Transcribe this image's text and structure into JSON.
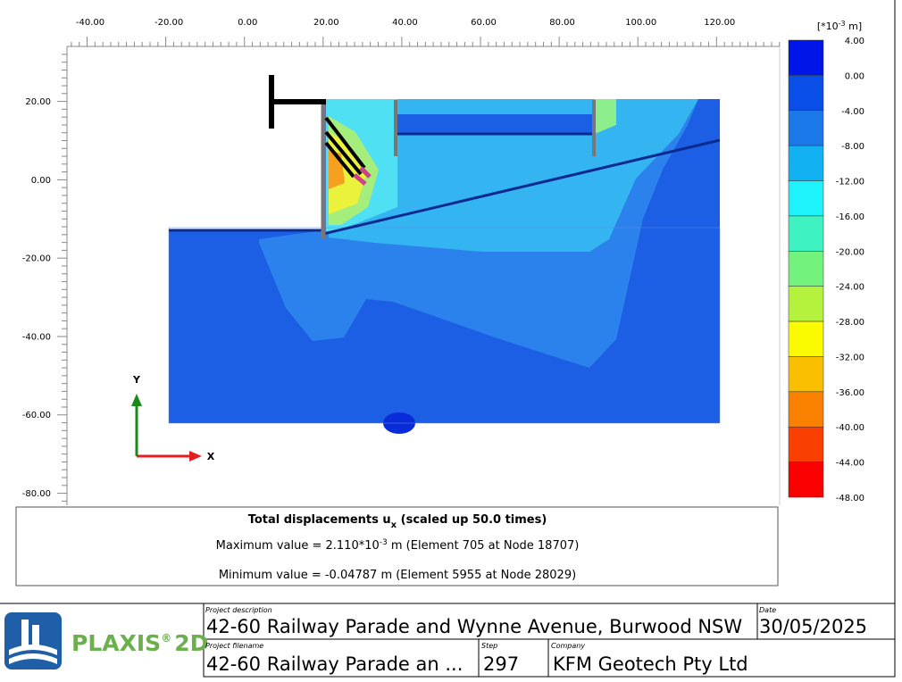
{
  "axes": {
    "x_tick_labels": [
      "-40.00",
      "-20.00",
      "0.00",
      "20.00",
      "40.00",
      "60.00",
      "80.00",
      "100.00",
      "120.00"
    ],
    "y_tick_labels": [
      "20.00",
      "0.00",
      "-20.00",
      "-40.00",
      "-60.00",
      "-80.00"
    ],
    "x_label": "X",
    "y_label": "Y"
  },
  "legend": {
    "unit": {
      "prefix": "[*10",
      "exponent": "-3",
      "suffix": " m]"
    },
    "labels": [
      "4.00",
      "0.00",
      "-4.00",
      "-8.00",
      "-12.00",
      "-16.00",
      "-20.00",
      "-24.00",
      "-28.00",
      "-32.00",
      "-36.00",
      "-40.00",
      "-44.00",
      "-48.00"
    ],
    "colors": [
      "#0016e8",
      "#0a4ee8",
      "#1a78e8",
      "#12b2f2",
      "#1ef2fa",
      "#3ef2c2",
      "#74f27e",
      "#b4f23e",
      "#fafa00",
      "#fac000",
      "#fa8000",
      "#fa4000",
      "#fa0000"
    ]
  },
  "info": {
    "title": {
      "main": "Total displacements u",
      "sub": "x",
      "rest": " (scaled up 50.0 times)"
    },
    "max": {
      "prefix": "Maximum value = 2.110*10",
      "exponent": "-3",
      "suffix": " m (Element 705 at Node 18707)"
    },
    "min": "Minimum value = -0.04787 m (Element 5955 at Node 28029)"
  },
  "footer": {
    "logo": {
      "name": "PLAXIS",
      "mark": "®",
      "product": "2D"
    },
    "project_description": {
      "label": "Project description",
      "value": "42-60 Railway Parade and Wynne Avenue, Burwood NSW"
    },
    "date": {
      "label": "Date",
      "value": "30/05/2025"
    },
    "project_filename": {
      "label": "Project filename",
      "value": "42-60 Railway Parade an ..."
    },
    "step": {
      "label": "Step",
      "value": "297"
    },
    "company": {
      "label": "Company",
      "value": "KFM Geotech Pty Ltd"
    }
  }
}
